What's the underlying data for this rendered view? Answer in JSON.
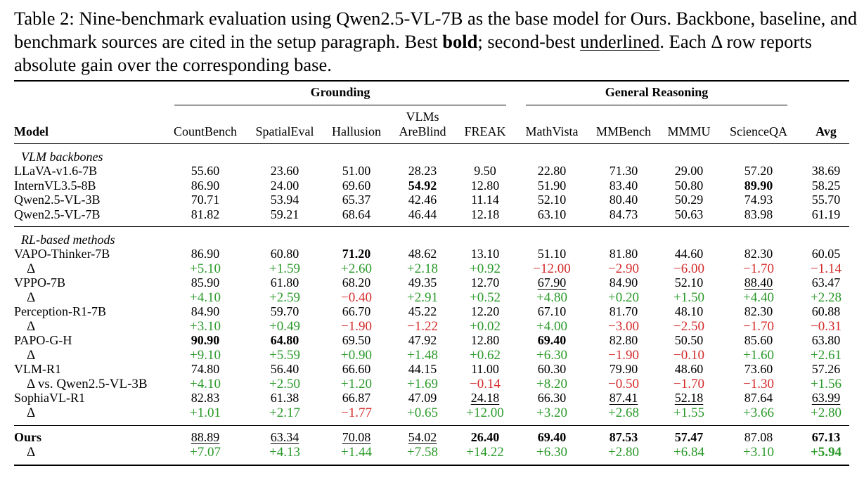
{
  "caption": {
    "part1": "Table 2: Nine-benchmark evaluation using Qwen2.5-VL-7B as the base model for Ours. Backbone, baseline, and benchmark sources are cited in the setup paragraph. Best ",
    "bold_word": "bold",
    "part2": "; second-best ",
    "underline_word": "underlined",
    "part3": ". Each Δ row reports absolute gain over the corresponding base."
  },
  "groups": {
    "grounding": "Grounding",
    "general": "General Reasoning"
  },
  "headers": {
    "model": "Model",
    "columns": [
      "CountBench",
      "SpatialEval",
      "Hallusion",
      "VLMs",
      "AreBlind",
      "FREAK",
      "MathVista",
      "MMBench",
      "MMMU",
      "ScienceQA",
      "Avg"
    ]
  },
  "sections": {
    "backbones": "VLM backbones",
    "rl": "RL-based methods"
  },
  "rows": [
    {
      "name": "LLaVA-v1.6-7B",
      "vals": [
        "55.60",
        "23.60",
        "51.00",
        "28.23",
        "9.50",
        "22.80",
        "71.30",
        "29.00",
        "57.20",
        "38.69"
      ]
    },
    {
      "name": "InternVL3.5-8B",
      "vals": [
        "86.90",
        "24.00",
        "69.60",
        "54.92",
        "12.80",
        "51.90",
        "83.40",
        "50.80",
        "89.90",
        "58.25"
      ]
    },
    {
      "name": "Qwen2.5-VL-3B",
      "vals": [
        "70.71",
        "53.94",
        "65.37",
        "42.46",
        "11.14",
        "52.10",
        "80.40",
        "50.29",
        "74.93",
        "55.70"
      ]
    },
    {
      "name": "Qwen2.5-VL-7B",
      "vals": [
        "81.82",
        "59.21",
        "68.64",
        "46.44",
        "12.18",
        "63.10",
        "84.73",
        "50.63",
        "83.98",
        "61.19"
      ]
    },
    {
      "name": "VAPO-Thinker-7B",
      "vals": [
        "86.90",
        "60.80",
        "71.20",
        "48.62",
        "13.10",
        "51.10",
        "81.80",
        "44.60",
        "82.30",
        "60.05"
      ]
    },
    {
      "name": "Δ",
      "vals": [
        "+5.10",
        "+1.59",
        "+2.60",
        "+2.18",
        "+0.92",
        "−12.00",
        "−2.90",
        "−6.00",
        "−1.70",
        "−1.14"
      ]
    },
    {
      "name": "VPPO-7B",
      "vals": [
        "85.90",
        "61.80",
        "68.20",
        "49.35",
        "12.70",
        "67.90",
        "84.90",
        "52.10",
        "88.40",
        "63.47"
      ]
    },
    {
      "name": "Δ",
      "vals": [
        "+4.10",
        "+2.59",
        "−0.40",
        "+2.91",
        "+0.52",
        "+4.80",
        "+0.20",
        "+1.50",
        "+4.40",
        "+2.28"
      ]
    },
    {
      "name": "Perception-R1-7B",
      "vals": [
        "84.90",
        "59.70",
        "66.70",
        "45.22",
        "12.20",
        "67.10",
        "81.70",
        "48.10",
        "82.30",
        "60.88"
      ]
    },
    {
      "name": "Δ",
      "vals": [
        "+3.10",
        "+0.49",
        "−1.90",
        "−1.22",
        "+0.02",
        "+4.00",
        "−3.00",
        "−2.50",
        "−1.70",
        "−0.31"
      ]
    },
    {
      "name": "PAPO-G-H",
      "vals": [
        "90.90",
        "64.80",
        "69.50",
        "47.92",
        "12.80",
        "69.40",
        "82.80",
        "50.50",
        "85.60",
        "63.80"
      ]
    },
    {
      "name": "Δ",
      "vals": [
        "+9.10",
        "+5.59",
        "+0.90",
        "+1.48",
        "+0.62",
        "+6.30",
        "−1.90",
        "−0.10",
        "+1.60",
        "+2.61"
      ]
    },
    {
      "name": "VLM-R1",
      "vals": [
        "74.80",
        "56.40",
        "66.60",
        "44.15",
        "11.00",
        "60.30",
        "79.90",
        "48.60",
        "73.60",
        "57.26"
      ]
    },
    {
      "name": "Δ vs. Qwen2.5-VL-3B",
      "vals": [
        "+4.10",
        "+2.50",
        "+1.20",
        "+1.69",
        "−0.14",
        "+8.20",
        "−0.50",
        "−1.70",
        "−1.30",
        "+1.56"
      ]
    },
    {
      "name": "SophiaVL-R1",
      "vals": [
        "82.83",
        "61.38",
        "66.87",
        "47.09",
        "24.18",
        "66.30",
        "87.41",
        "52.18",
        "87.64",
        "63.99"
      ]
    },
    {
      "name": "Δ",
      "vals": [
        "+1.01",
        "+2.17",
        "−1.77",
        "+0.65",
        "+12.00",
        "+3.20",
        "+2.68",
        "+1.55",
        "+3.66",
        "+2.80"
      ]
    },
    {
      "name": "Ours",
      "vals": [
        "88.89",
        "63.34",
        "70.08",
        "54.02",
        "26.40",
        "69.40",
        "87.53",
        "57.47",
        "87.08",
        "67.13"
      ]
    },
    {
      "name": "Δ",
      "vals": [
        "+7.07",
        "+4.13",
        "+1.44",
        "+7.58",
        "+14.22",
        "+6.30",
        "+2.80",
        "+6.84",
        "+3.10",
        "+5.94"
      ]
    }
  ]
}
